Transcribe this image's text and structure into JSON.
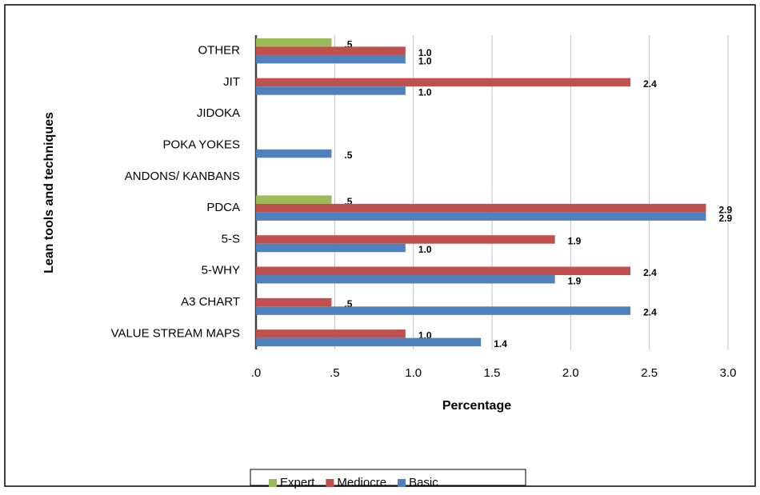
{
  "chart_data": {
    "type": "barh",
    "categories": [
      "OTHER",
      "JIT",
      "JIDOKA",
      "POKA YOKES",
      "ANDONS/ KANBANS",
      "PDCA",
      "5-S",
      "5-WHY",
      "A3 CHART",
      "VALUE STREAM MAPS"
    ],
    "series": [
      {
        "name": "Expert",
        "color": "#9bbb59",
        "values": [
          0.48,
          null,
          null,
          null,
          null,
          0.48,
          null,
          null,
          null,
          null
        ],
        "value_labels": [
          ".5",
          null,
          null,
          null,
          null,
          ".5",
          null,
          null,
          null,
          null
        ]
      },
      {
        "name": "Mediocre",
        "color": "#c0504d",
        "values": [
          0.95,
          2.38,
          null,
          null,
          null,
          2.86,
          1.9,
          2.38,
          0.48,
          0.95
        ],
        "value_labels": [
          "1.0",
          "2.4",
          null,
          null,
          null,
          "2.9",
          "1.9",
          "2.4",
          ".5",
          "1.0"
        ]
      },
      {
        "name": "Basic",
        "color": "#4f81bd",
        "values": [
          0.95,
          0.95,
          null,
          0.48,
          null,
          2.86,
          0.95,
          1.9,
          2.38,
          1.43
        ],
        "value_labels": [
          "1.0",
          "1.0",
          null,
          ".5",
          null,
          "2.9",
          "1.0",
          "1.9",
          "2.4",
          "1.4"
        ]
      }
    ],
    "xlabel": "Percentage",
    "ylabel": "Lean tools and techniques",
    "xlim": [
      0,
      3.0
    ],
    "xticks": [
      {
        "value": 0,
        "label": ".0"
      },
      {
        "value": 0.5,
        "label": ".5"
      },
      {
        "value": 1.0,
        "label": "1.0"
      },
      1.5,
      {
        "value": 2.0,
        "label": "2.0"
      },
      2.5,
      {
        "value": 3.0,
        "label": "3.0"
      }
    ],
    "grid": true,
    "legend": "bottom"
  }
}
